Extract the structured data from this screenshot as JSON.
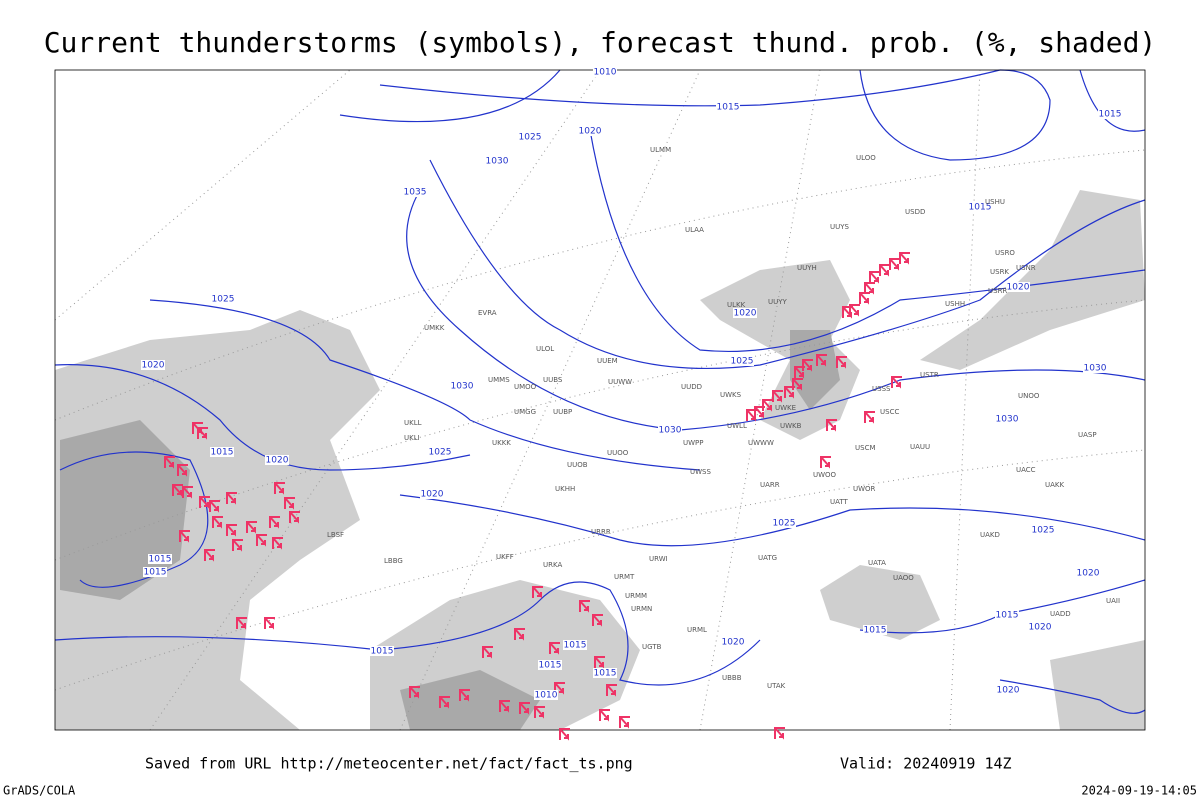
{
  "header": {
    "title": "Current thunderstorms (symbols), forecast thund. prob. (%, shaded)"
  },
  "footer": {
    "url": "Saved from URL http://meteocenter.net/fact/fact_ts.png",
    "valid": "Valid: 20240919 14Z",
    "software": "GrADS/COLA",
    "timestamp": "2024-09-19-14:05"
  },
  "isobar_labels": [
    "1010",
    "1015",
    "1015",
    "1025",
    "1020",
    "1030",
    "1035",
    "1015",
    "1025",
    "1020",
    "1020",
    "1025",
    "1020",
    "1030",
    "1030",
    "1030",
    "1030",
    "1015",
    "1020",
    "1025",
    "1020",
    "1025",
    "1025",
    "1015",
    "1015",
    "1020",
    "1015",
    "1015",
    "1015",
    "1015",
    "1015",
    "1020",
    "1020",
    "1015",
    "1010",
    "1020"
  ],
  "stations": [
    "UUYY",
    "ULKK",
    "UUYH",
    "USRR",
    "USRK",
    "USRO",
    "USNR",
    "USHH",
    "UUYS",
    "ULAA",
    "ULMM",
    "ULOO",
    "USDD",
    "USHU",
    "UUEM",
    "UUWW",
    "UUDD",
    "UWKS",
    "UWLL",
    "UWKB",
    "UWWW",
    "UWPP",
    "UUOO",
    "UWSS",
    "UWKE",
    "UUOB",
    "USSS",
    "USCC",
    "USCM",
    "UAUU",
    "USTR",
    "UNOO",
    "UACC",
    "UAKK",
    "UASP",
    "UAKD",
    "UARR",
    "UWOO",
    "UWOR",
    "UATT",
    "UATG",
    "UATA",
    "UAOO",
    "UAII",
    "UADD",
    "UMKK",
    "EVRA",
    "ULOL",
    "UMMS",
    "UMOO",
    "UUBS",
    "UMGG",
    "UUBP",
    "UKKK",
    "UKLL",
    "UKLI",
    "UKHH",
    "UKFF",
    "URKA",
    "URRR",
    "URWI",
    "URMT",
    "URMM",
    "URMN",
    "URML",
    "UGTB",
    "UBBB",
    "UTAK",
    "LBBG",
    "LBSF"
  ]
}
